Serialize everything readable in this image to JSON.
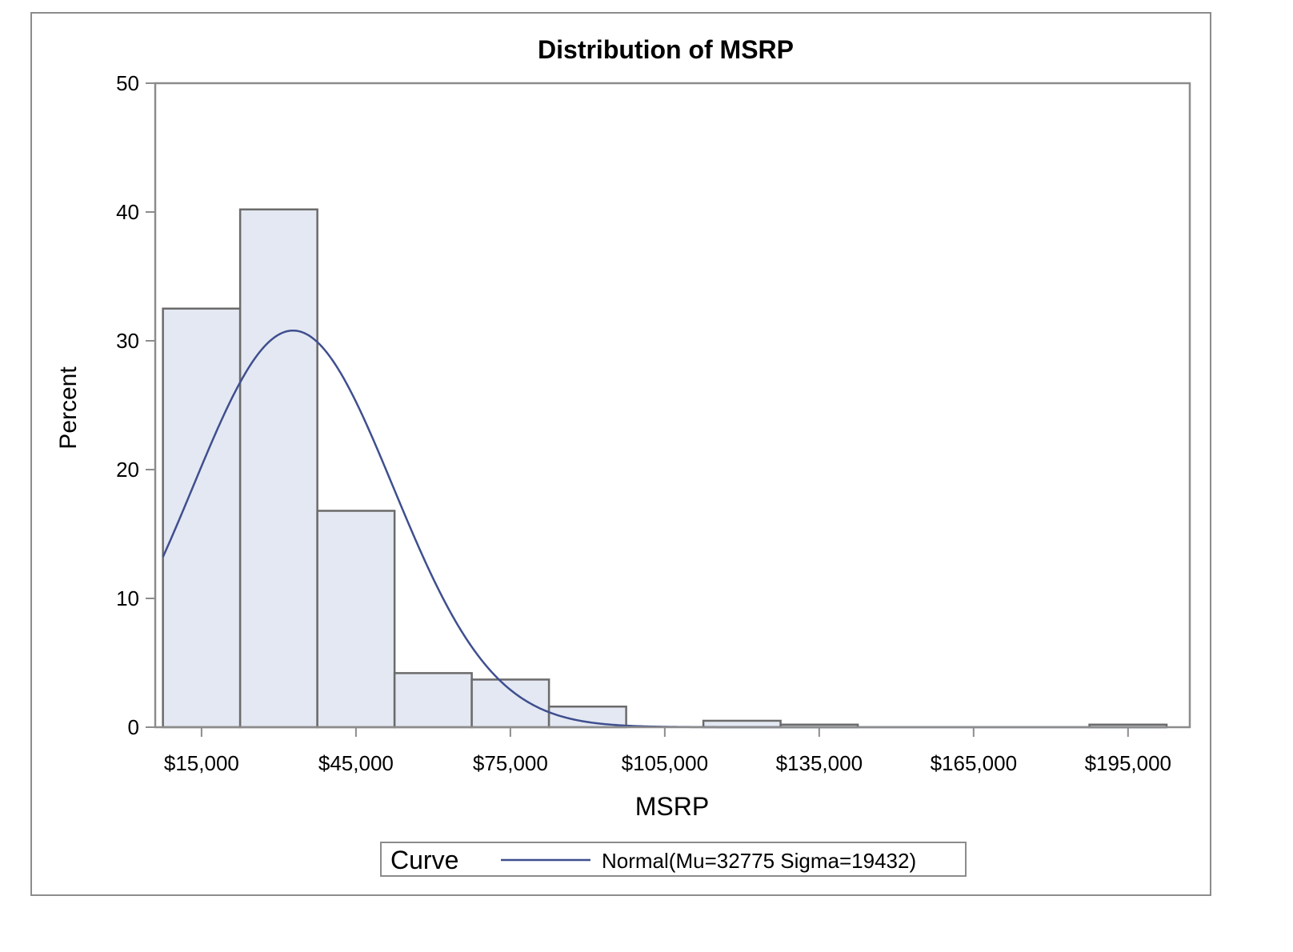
{
  "chart_data": {
    "type": "bar",
    "title": "Distribution of MSRP",
    "xlabel": "MSRP",
    "ylabel": "Percent",
    "ylim": [
      0,
      50
    ],
    "xlim": [
      6000,
      207000
    ],
    "yticks": [
      0,
      10,
      20,
      30,
      40,
      50
    ],
    "xticks": [
      15000,
      45000,
      75000,
      105000,
      135000,
      165000,
      195000
    ],
    "xtick_labels": [
      "$15,000",
      "$45,000",
      "$75,000",
      "$105,000",
      "$135,000",
      "$165,000",
      "$195,000"
    ],
    "bin_width": 15000,
    "bins": [
      {
        "mid": 15000,
        "value": 32.5
      },
      {
        "mid": 30000,
        "value": 40.2
      },
      {
        "mid": 45000,
        "value": 16.8
      },
      {
        "mid": 60000,
        "value": 4.2
      },
      {
        "mid": 75000,
        "value": 3.7
      },
      {
        "mid": 90000,
        "value": 1.6
      },
      {
        "mid": 105000,
        "value": 0.0
      },
      {
        "mid": 120000,
        "value": 0.5
      },
      {
        "mid": 135000,
        "value": 0.2
      },
      {
        "mid": 150000,
        "value": 0.0
      },
      {
        "mid": 165000,
        "value": 0.0
      },
      {
        "mid": 180000,
        "value": 0.0
      },
      {
        "mid": 195000,
        "value": 0.2
      }
    ],
    "curve": {
      "type": "normal",
      "mu": 32775,
      "sigma": 19432
    },
    "legend": {
      "position": "bottom",
      "title": "Curve",
      "entry": "Normal(Mu=32775 Sigma=19432)"
    },
    "colors": {
      "bar_fill": "#e4e8f2",
      "bar_stroke": "#6b6b6b",
      "curve": "#3f4f8f",
      "axis": "#8c8c8c",
      "frame": "#8c8c8c"
    },
    "grid": false
  }
}
